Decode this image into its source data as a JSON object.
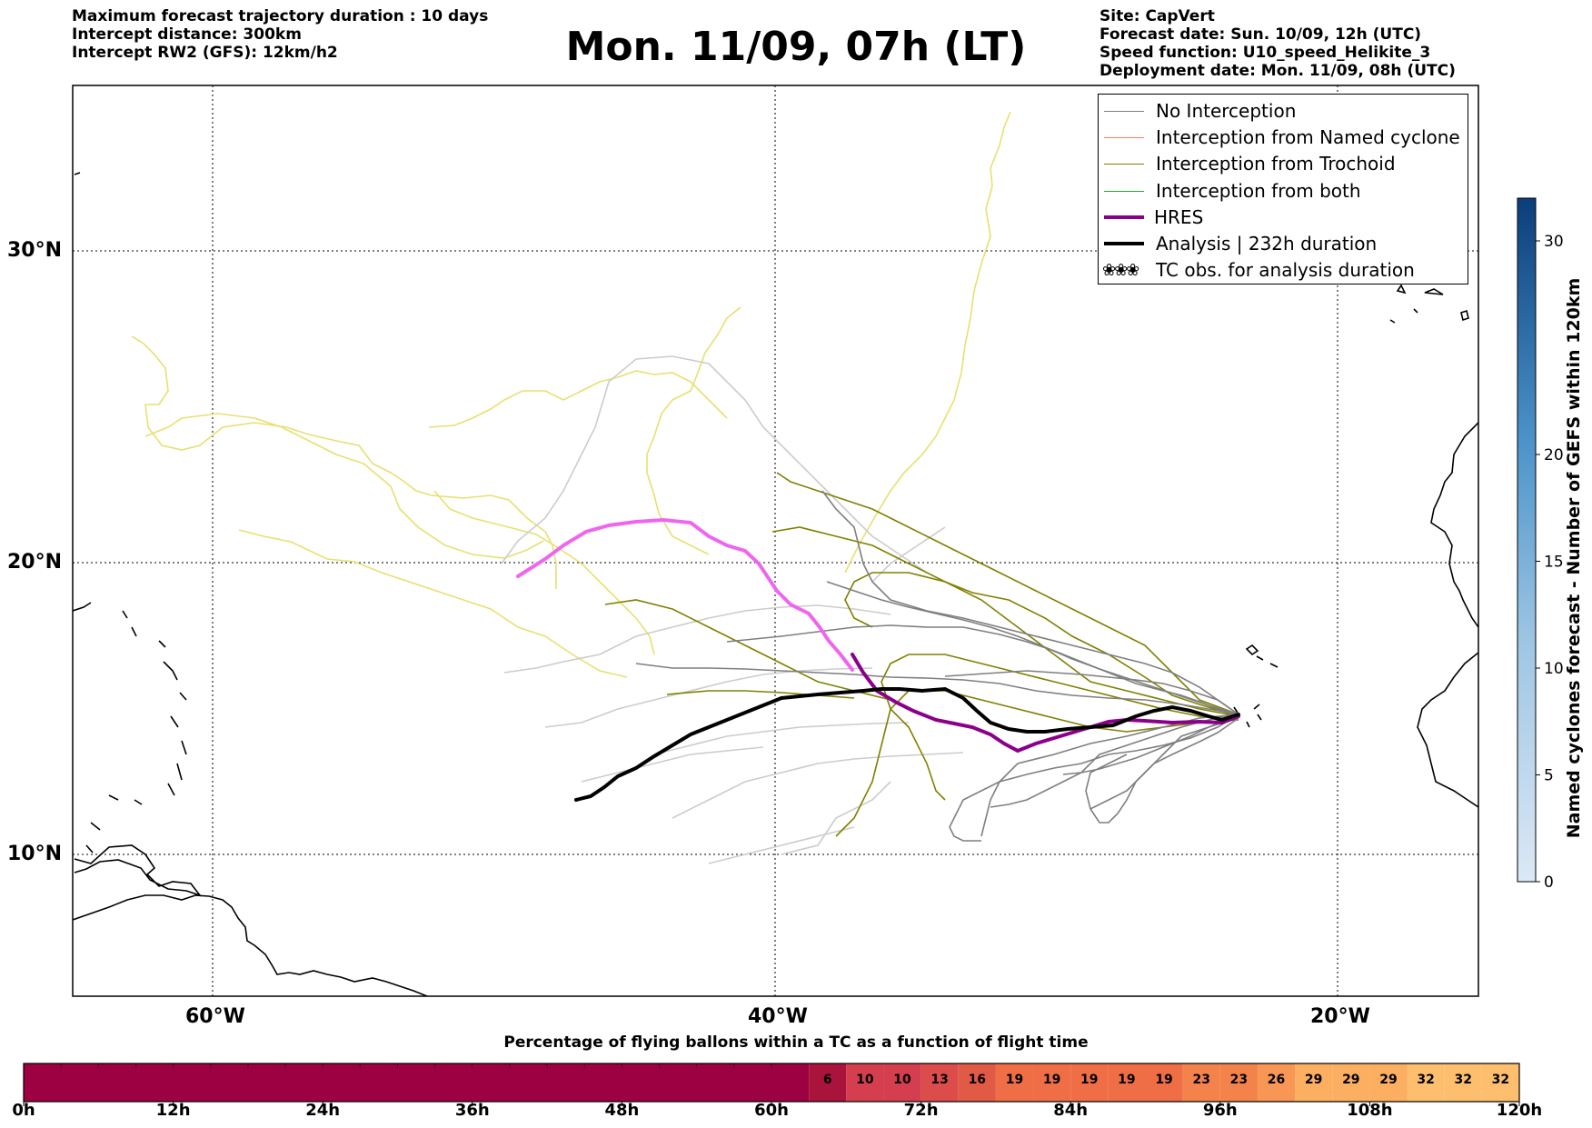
{
  "header_left": [
    "Maximum forecast trajectory duration : 10 days",
    "Intercept distance: 300km",
    "Intercept RW2 (GFS):  12km/h2"
  ],
  "title": "Mon. 11/09, 07h (LT)",
  "header_right": [
    "Site: CapVert",
    "Forecast date: Sun. 10/09, 12h (UTC)",
    "Speed function: U10_speed_Helikite_3",
    "Deployment date: Mon. 11/09, 08h (UTC)"
  ],
  "map": {
    "lat_labels": [
      "30°N",
      "20°N",
      "10°N"
    ],
    "lon_labels": [
      "60°W",
      "40°W",
      "20°W"
    ],
    "lat_values": [
      30,
      20,
      10
    ],
    "lon_values": [
      -60,
      -40,
      -20
    ]
  },
  "legend": {
    "items": [
      {
        "label": "No Interception",
        "color": "#7f7f7f",
        "width": 1.5
      },
      {
        "label": "Interception from Named cyclone",
        "color": "#ff7f50",
        "width": 1.5
      },
      {
        "label": "Interception from Trochoid",
        "color": "#808000",
        "width": 1.5
      },
      {
        "label": "Interception from both",
        "color": "#2ca02c",
        "width": 1.5
      },
      {
        "label": "HRES",
        "color": "#8b008b",
        "width": 4
      },
      {
        "label": "Analysis | 232h duration",
        "color": "#000000",
        "width": 4
      }
    ],
    "tc_symbol": "❀❀❀",
    "tc_label": "TC obs. for analysis duration"
  },
  "colorbar_vertical": {
    "title": "Named cyclones forecast - Number of GEFS within 120km",
    "ticks": [
      "0",
      "5",
      "10",
      "15",
      "20",
      "30"
    ],
    "tick_values": [
      0,
      5,
      10,
      15,
      20,
      30
    ],
    "max": 32
  },
  "colorbar_bottom": {
    "title": "Percentage of flying ballons within a TC as a function of flight time",
    "hour_labels": [
      "0h",
      "12h",
      "24h",
      "36h",
      "48h",
      "60h",
      "72h",
      "84h",
      "96h",
      "108h",
      "120h"
    ],
    "percent_cells": [
      "6",
      "10",
      "10",
      "13",
      "16",
      "19",
      "19",
      "19",
      "19",
      "19",
      "23",
      "23",
      "26",
      "29",
      "29",
      "29",
      "32",
      "32",
      "32"
    ],
    "percent_start_hour": 63
  },
  "chart_data": {
    "type": "map-trajectories",
    "site": "CapVert",
    "analysis_duration_hours": 232,
    "colors": {
      "no_interception": "#7f7f7f",
      "named_cyclone": "#ff7f50",
      "trochoid": "#808000",
      "both": "#2ca02c",
      "hres_early": "#ee66ee",
      "hres_late": "#8b008b",
      "analysis": "#000000",
      "trochoid_faded": "#e8e070",
      "no_interception_faded": "#cccccc"
    }
  }
}
